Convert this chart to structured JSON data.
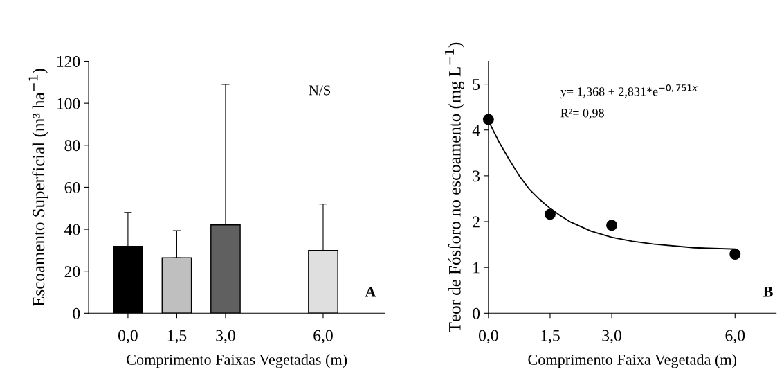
{
  "chart_data": [
    {
      "type": "bar",
      "ylabel": "Escoamento Superficial (m³ ha$^{−1}$)",
      "xlabel": "Comprimento Faixas Vegetadas (m)",
      "x": [
        0,
        1.5,
        3,
        6
      ],
      "values": [
        31.9,
        26.4,
        42.1,
        29.9
      ],
      "colors": [
        "#000000",
        "#bfbfbf",
        "#606060",
        "#dfdfdf"
      ],
      "errors": [
        [
          31.9,
          48
        ],
        [
          26.4,
          39.3
        ],
        [
          42.1,
          109
        ],
        [
          29.9,
          52
        ]
      ],
      "xlim": [
        -1.21,
        7.9
      ],
      "xticks": [
        {
          "value": 0,
          "label": "0,0"
        },
        {
          "value": 1.5,
          "label": "1,5"
        },
        {
          "value": 3,
          "label": "3,0"
        },
        {
          "value": 6,
          "label": "6,0"
        }
      ],
      "ylim": [
        0,
        120
      ],
      "yticks": [
        0,
        20,
        40,
        60,
        80,
        100,
        120
      ],
      "annotations": [
        "N/S",
        "A"
      ]
    },
    {
      "type": "scatter",
      "ylabel": "Teor de Fósforo no escoamento (mg L$^{−1}$)",
      "xlabel": "Comprimento Faixa Vegetada (m)",
      "x": [
        0,
        1.5,
        3,
        6
      ],
      "series": [
        {
          "type": "scatter",
          "marker": "circle",
          "color": "#000000",
          "values": [
            4.23,
            2.16,
            1.92,
            1.29
          ]
        },
        {
          "type": "line",
          "marker": "none",
          "color": "#000000",
          "x": [
            0,
            0.25,
            0.5,
            0.75,
            1,
            1.25,
            1.5,
            1.75,
            2,
            2.5,
            3,
            3.5,
            4,
            5,
            6
          ],
          "values": [
            4.2,
            3.75,
            3.36,
            3.0,
            2.7,
            2.48,
            2.29,
            2.13,
            1.99,
            1.79,
            1.66,
            1.57,
            1.51,
            1.43,
            1.4
          ]
        }
      ],
      "xlim": [
        0,
        7.0
      ],
      "xticks": [
        {
          "value": 0,
          "label": "0,0"
        },
        {
          "value": 1.5,
          "label": "1,5"
        },
        {
          "value": 3,
          "label": "3,0"
        },
        {
          "value": 6,
          "label": "6,0"
        }
      ],
      "ylim": [
        0,
        5.5
      ],
      "yticks": [
        0,
        1,
        2,
        3,
        4,
        5
      ],
      "annotations": [
        "y= 1,368 + 2,831*e$^{−0,751x}$",
        "R²= 0,98",
        "B"
      ]
    }
  ]
}
